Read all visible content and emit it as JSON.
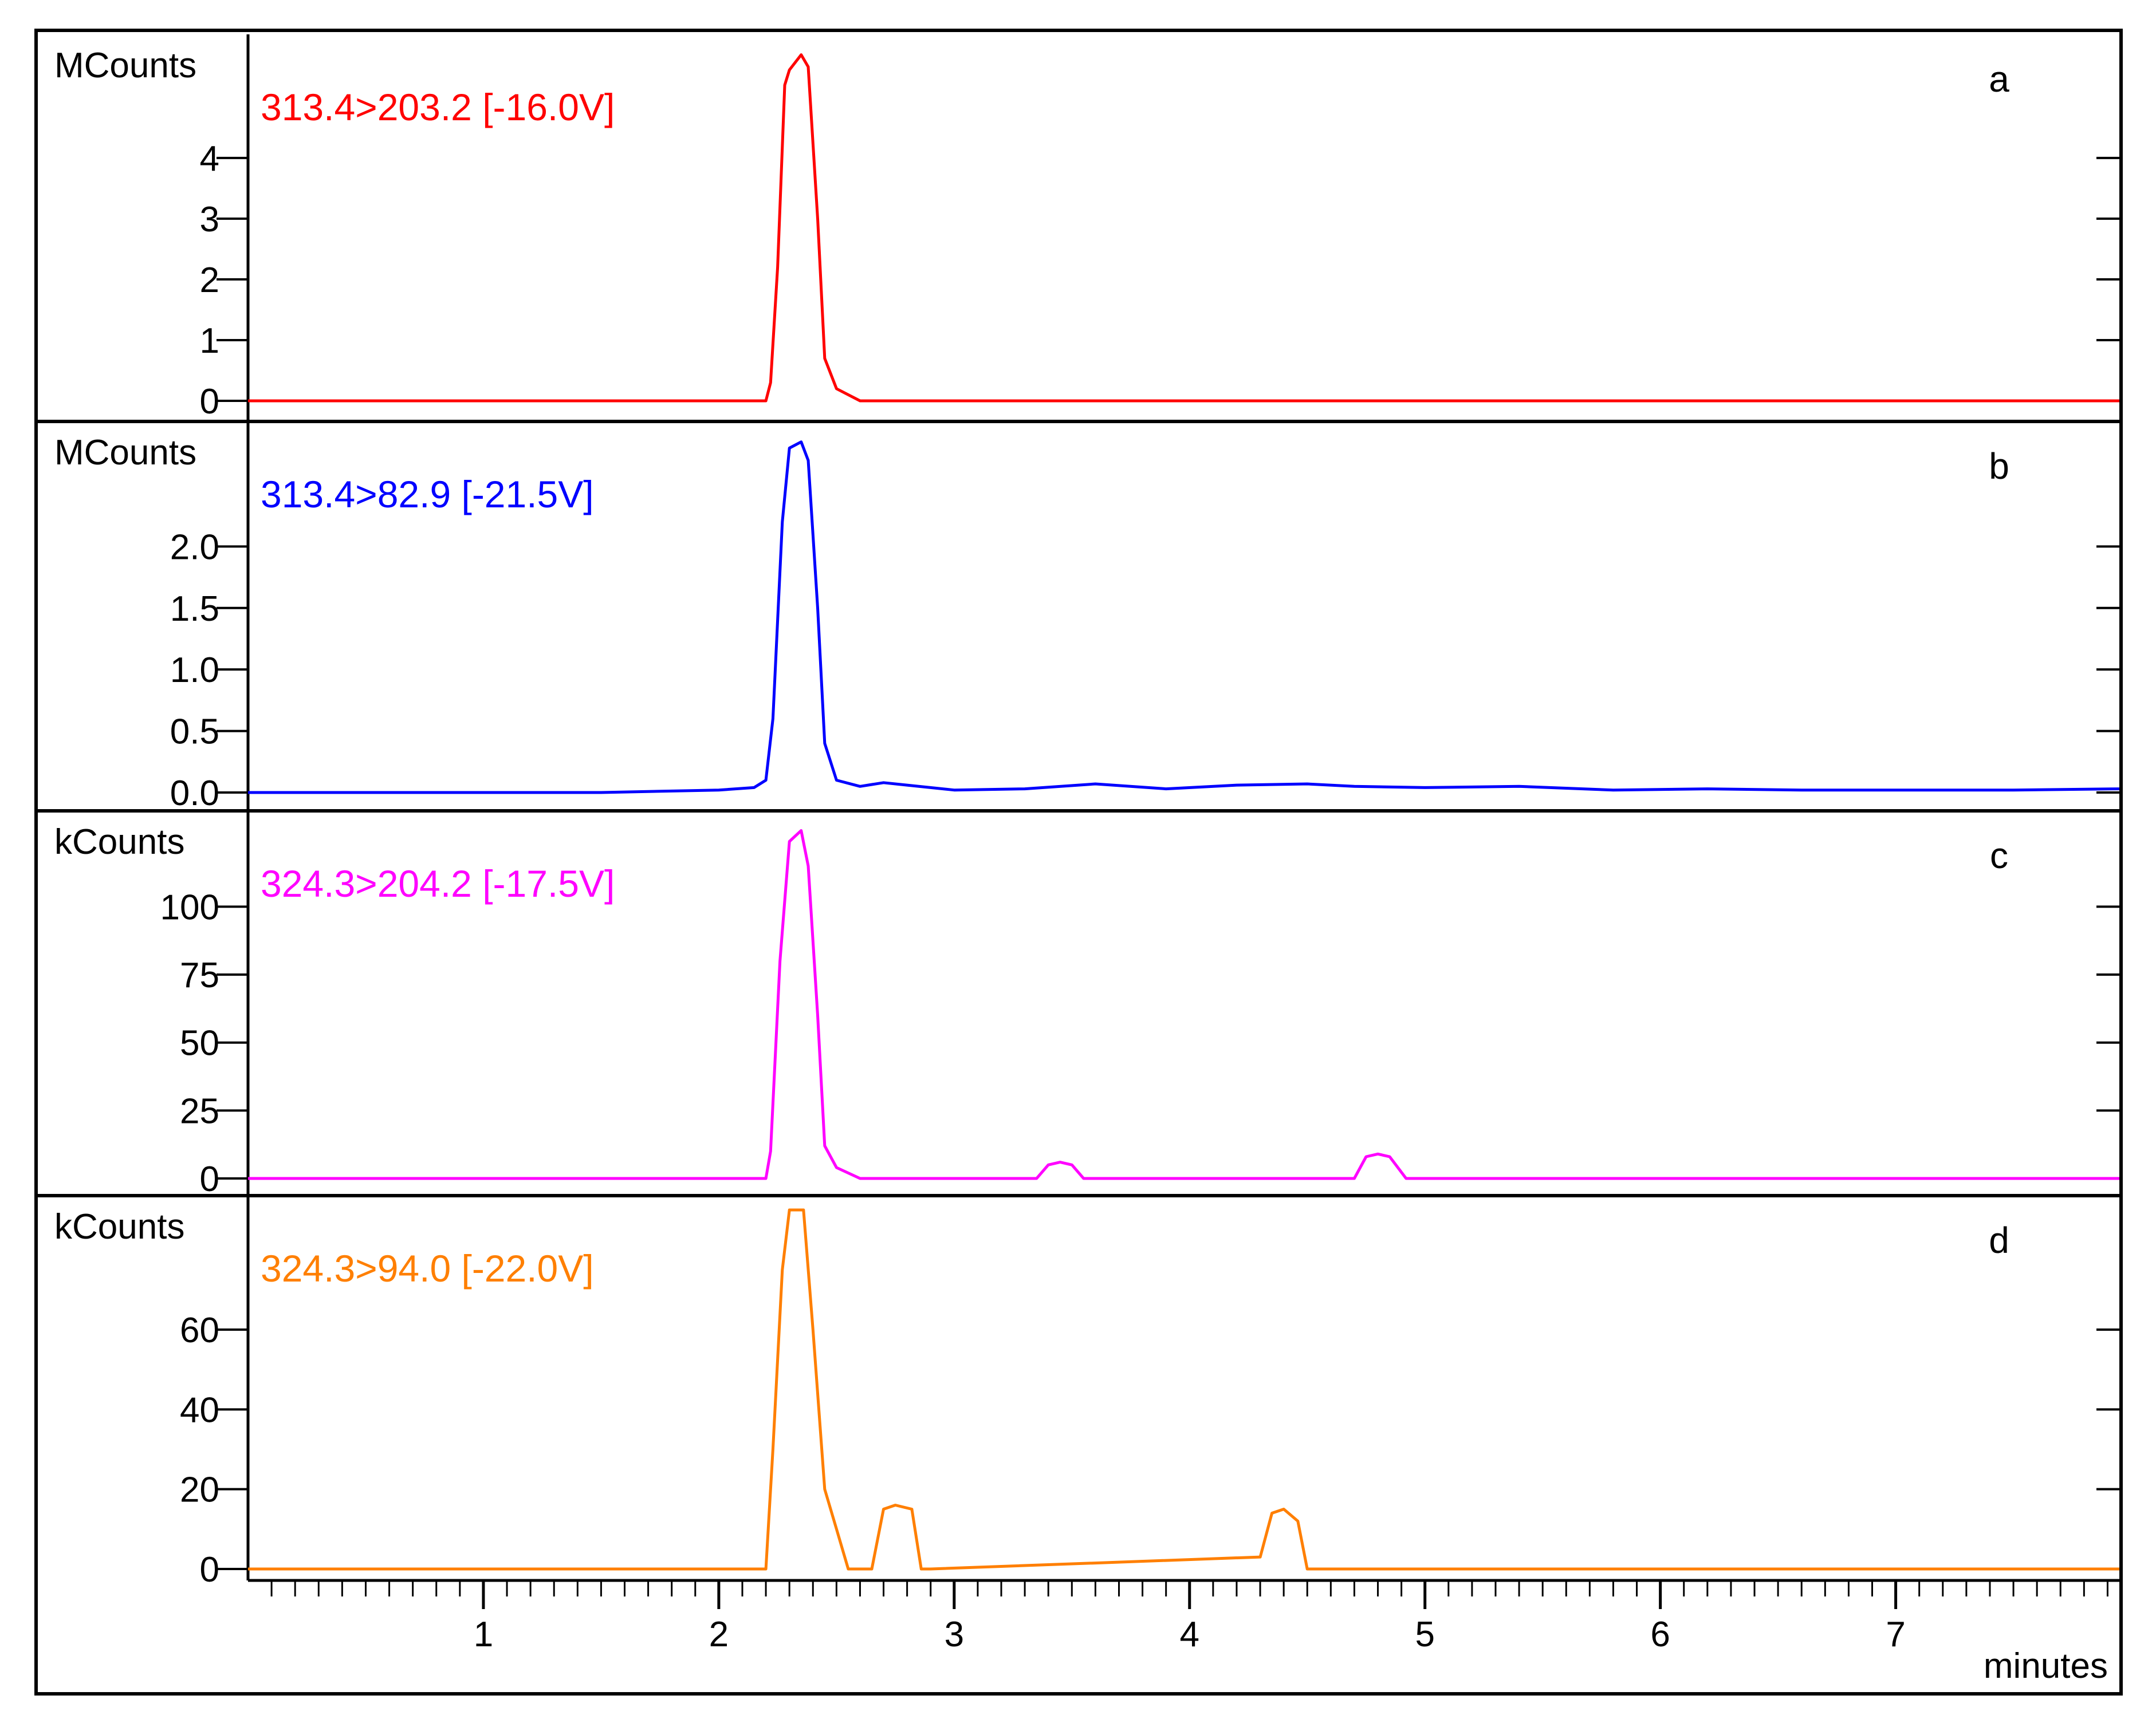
{
  "chart_data": {
    "type": "line",
    "x_unit_label": "minutes",
    "x_range": [
      0.0,
      7.95
    ],
    "x_ticks": [
      "1",
      "2",
      "3",
      "4",
      "5",
      "6",
      "7"
    ],
    "x_tick_values": [
      1,
      2,
      3,
      4,
      5,
      6,
      7
    ],
    "panels": [
      {
        "letter": "a",
        "ylabel": "MCounts",
        "trace": "313.4>203.2 [-16.0V]",
        "color": "#ff0000",
        "ylim": [
          0,
          5.8
        ],
        "yticks": [
          "0",
          "1",
          "2",
          "3",
          "4"
        ],
        "ytick_values": [
          0,
          1,
          2,
          3,
          4
        ],
        "x": [
          0.0,
          2.2,
          2.22,
          2.25,
          2.28,
          2.3,
          2.35,
          2.38,
          2.42,
          2.45,
          2.5,
          2.6,
          7.95
        ],
        "y": [
          0.0,
          0.0,
          0.3,
          2.2,
          5.2,
          5.45,
          5.7,
          5.5,
          3.0,
          0.7,
          0.2,
          0.0,
          0.0
        ]
      },
      {
        "letter": "b",
        "ylabel": "MCounts",
        "trace": "313.4>82.9 [-21.5V]",
        "color": "#0000ff",
        "ylim": [
          0,
          2.9
        ],
        "yticks": [
          "0.0",
          "0.5",
          "1.0",
          "1.5",
          "2.0"
        ],
        "ytick_values": [
          0,
          0.5,
          1.0,
          1.5,
          2.0
        ],
        "x": [
          0.0,
          1.5,
          2.0,
          2.15,
          2.2,
          2.23,
          2.27,
          2.3,
          2.35,
          2.38,
          2.42,
          2.45,
          2.5,
          2.6,
          2.7,
          2.8,
          3.0,
          3.3,
          3.6,
          3.9,
          4.2,
          4.5,
          4.7,
          5.0,
          5.4,
          5.8,
          6.2,
          6.6,
          7.0,
          7.5,
          7.95
        ],
        "y": [
          0.0,
          0.0,
          0.02,
          0.04,
          0.1,
          0.6,
          2.2,
          2.8,
          2.85,
          2.7,
          1.5,
          0.4,
          0.1,
          0.05,
          0.08,
          0.06,
          0.02,
          0.03,
          0.07,
          0.03,
          0.06,
          0.07,
          0.05,
          0.04,
          0.05,
          0.02,
          0.03,
          0.02,
          0.02,
          0.02,
          0.03
        ]
      },
      {
        "letter": "c",
        "ylabel": "kCounts",
        "trace": "324.3>204.2 [-17.5V]",
        "color": "#ff00ff",
        "ylim": [
          0,
          130
        ],
        "yticks": [
          "0",
          "25",
          "50",
          "75",
          "100"
        ],
        "ytick_values": [
          0,
          25,
          50,
          75,
          100
        ],
        "x": [
          0.0,
          2.2,
          2.22,
          2.26,
          2.3,
          2.35,
          2.38,
          2.42,
          2.45,
          2.5,
          2.6,
          3.35,
          3.4,
          3.45,
          3.5,
          3.55,
          4.7,
          4.75,
          4.8,
          4.85,
          4.92,
          7.95
        ],
        "y": [
          0.0,
          0.0,
          10,
          80,
          124,
          128,
          115,
          60,
          12,
          4,
          0,
          0,
          5,
          6,
          5,
          0,
          0,
          8,
          9,
          8,
          0,
          0
        ]
      },
      {
        "letter": "d",
        "ylabel": "kCounts",
        "trace": "324.3>94.0 [-22.0V]",
        "color": "#ff7f00",
        "ylim": [
          0,
          90
        ],
        "yticks": [
          "0",
          "20",
          "40",
          "60"
        ],
        "ytick_values": [
          0,
          20,
          40,
          60
        ],
        "x": [
          0.0,
          2.2,
          2.23,
          2.27,
          2.3,
          2.36,
          2.4,
          2.45,
          2.5,
          2.55,
          2.65,
          2.7,
          2.75,
          2.82,
          2.86,
          2.9,
          4.3,
          4.35,
          4.4,
          4.46,
          4.5,
          7.95
        ],
        "y": [
          0.0,
          0.0,
          30,
          75,
          90,
          90,
          60,
          20,
          10,
          0,
          0,
          15,
          16,
          15,
          0,
          0,
          3,
          14,
          15,
          12,
          0,
          0
        ]
      }
    ]
  }
}
